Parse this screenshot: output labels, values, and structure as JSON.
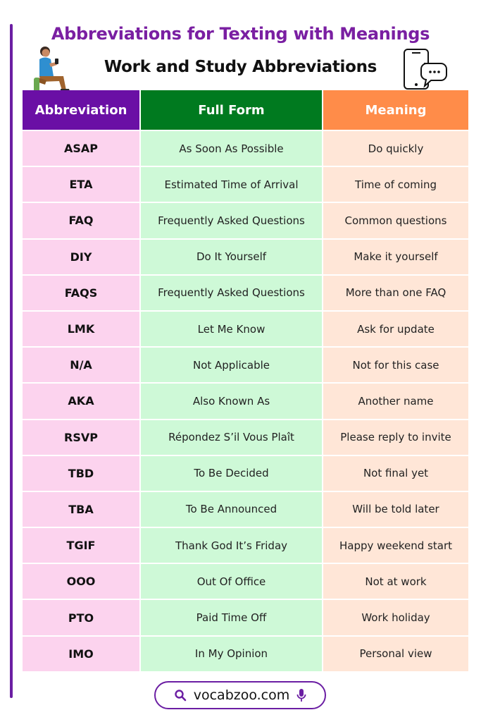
{
  "title": "Abbreviations for Texting with Meanings",
  "subtitle": "Work and Study Abbreviations",
  "icons": {
    "person": "person-with-phone-icon",
    "phone": "smartphone-chat-icon",
    "search": "search-icon",
    "mic": "microphone-icon"
  },
  "colors": {
    "title": "#7a1fa2",
    "header_abbreviation": "#6a0fa5",
    "header_full_form": "#007a1f",
    "header_meaning": "#ff8c49",
    "col_abbreviation": "#fcd3ee",
    "col_full_form": "#cef9d7",
    "col_meaning": "#ffe6d7"
  },
  "table": {
    "headers": [
      "Abbreviation",
      "Full Form",
      "Meaning"
    ],
    "rows": [
      {
        "abbr": "ASAP",
        "full": "As Soon As Possible",
        "meaning": "Do quickly"
      },
      {
        "abbr": "ETA",
        "full": "Estimated Time of Arrival",
        "meaning": "Time of coming"
      },
      {
        "abbr": "FAQ",
        "full": "Frequently Asked Questions",
        "meaning": "Common questions"
      },
      {
        "abbr": "DIY",
        "full": "Do It Yourself",
        "meaning": "Make it yourself"
      },
      {
        "abbr": "FAQS",
        "full": "Frequently Asked Questions",
        "meaning": "More than one FAQ"
      },
      {
        "abbr": "LMK",
        "full": "Let Me Know",
        "meaning": "Ask for update"
      },
      {
        "abbr": "N/A",
        "full": "Not Applicable",
        "meaning": "Not for this case"
      },
      {
        "abbr": "AKA",
        "full": "Also Known As",
        "meaning": "Another name"
      },
      {
        "abbr": "RSVP",
        "full": "Répondez S’il Vous Plaît",
        "meaning": "Please reply to invite"
      },
      {
        "abbr": "TBD",
        "full": "To Be Decided",
        "meaning": "Not final yet"
      },
      {
        "abbr": "TBA",
        "full": "To Be Announced",
        "meaning": "Will be told later"
      },
      {
        "abbr": "TGIF",
        "full": "Thank God It’s Friday",
        "meaning": "Happy weekend start"
      },
      {
        "abbr": "OOO",
        "full": "Out Of Office",
        "meaning": "Not at work"
      },
      {
        "abbr": "PTO",
        "full": "Paid Time Off",
        "meaning": "Work holiday"
      },
      {
        "abbr": "IMO",
        "full": "In My Opinion",
        "meaning": "Personal view"
      }
    ]
  },
  "footer": {
    "url": "vocabzoo.com"
  }
}
